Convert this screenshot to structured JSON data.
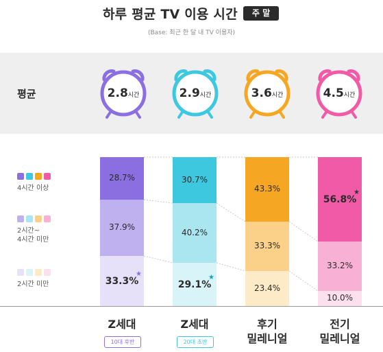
{
  "header": {
    "title": "하루 평균 TV 이용 시간",
    "badge": "주 말",
    "base_note": "(Base: 최근 한 달 내 TV 이용자)"
  },
  "average": {
    "label": "평균",
    "unit": "시간",
    "values": [
      "2.8",
      "2.9",
      "3.6",
      "4.5"
    ]
  },
  "legend": {
    "items": [
      {
        "text_lines": [
          "4시간 이상"
        ]
      },
      {
        "text_lines": [
          "2시간~",
          "4시간 미만"
        ]
      },
      {
        "text_lines": [
          "2시간 미만"
        ]
      }
    ],
    "colors": {
      "high": [
        "#8b6fe0",
        "#3ec8e0",
        "#f5a623",
        "#f05aa6"
      ],
      "mid": [
        "#bfb0f0",
        "#a9e6f0",
        "#fbd18a",
        "#f8b1d4"
      ],
      "low": [
        "#e6e0f8",
        "#d9f4f8",
        "#fdebc8",
        "#fde0ee"
      ]
    }
  },
  "chart_data": {
    "type": "bar",
    "stacked": true,
    "categories": [
      "Z세대 10대 후반",
      "Z세대 20대 초반",
      "후기 밀레니얼",
      "전기 밀레니얼"
    ],
    "series": [
      {
        "name": "4시간 이상",
        "values": [
          28.7,
          30.7,
          43.3,
          56.8
        ]
      },
      {
        "name": "2시간~4시간 미만",
        "values": [
          37.9,
          40.2,
          33.3,
          33.2
        ]
      },
      {
        "name": "2시간 미만",
        "values": [
          33.3,
          29.1,
          23.4,
          10.0
        ]
      }
    ],
    "labels": {
      "high": [
        "28.7%",
        "30.7%",
        "43.3%",
        "56.8%"
      ],
      "mid": [
        "37.9%",
        "40.2%",
        "33.3%",
        "33.2%"
      ],
      "low": [
        "33.3%",
        "29.1%",
        "23.4%",
        "10.0%"
      ]
    },
    "star_marks": [
      "low",
      "low",
      "",
      "high"
    ],
    "ylim": [
      0,
      100
    ]
  },
  "categories": [
    {
      "name_lines": [
        "Z세대"
      ],
      "sub": "10대 후반",
      "color": "#8b6fe0",
      "star_color": "#8b6fe0"
    },
    {
      "name_lines": [
        "Z세대"
      ],
      "sub": "20대 초반",
      "color": "#3ec8e0",
      "star_color": "#1aa0c0"
    },
    {
      "name_lines": [
        "후기",
        "밀레니얼"
      ],
      "sub": "",
      "color": "#f5a623",
      "star_color": "#f5a623"
    },
    {
      "name_lines": [
        "전기",
        "밀레니얼"
      ],
      "sub": "",
      "color": "#f05aa6",
      "star_color": "#333333"
    }
  ]
}
